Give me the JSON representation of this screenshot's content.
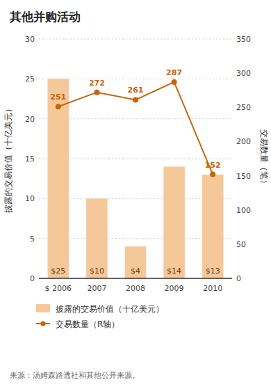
{
  "chart_data": {
    "type": "bar",
    "title": "其他并购活动",
    "categories": [
      "$ 2006",
      "2007",
      "2008",
      "2009",
      "2010"
    ],
    "series": [
      {
        "name": "披露的交易价值（十亿美元）",
        "type": "bar",
        "color": "#F5C89A",
        "values": [
          25,
          10,
          4,
          14,
          13
        ],
        "value_labels": [
          "$25",
          "$10",
          "$4",
          "$14",
          "$13"
        ]
      },
      {
        "name": "交易数量（R轴）",
        "type": "line",
        "axis": "y2",
        "color": "#C8640A",
        "marker": "circle",
        "values": [
          251,
          272,
          261,
          287,
          152
        ]
      }
    ],
    "ylabel": "披露的交易价值（十亿美元）",
    "y2label": "交易数量（笔）",
    "ylim": [
      0,
      30
    ],
    "yticks": [
      0,
      5,
      10,
      15,
      20,
      25,
      30
    ],
    "y2lim": [
      0,
      350
    ],
    "y2ticks": [
      0,
      50,
      100,
      150,
      200,
      250,
      300,
      350
    ],
    "grid": true,
    "data_labels": true,
    "legend": "bottom",
    "source": "来源：汤姆森路透社和其他公开来源。"
  }
}
